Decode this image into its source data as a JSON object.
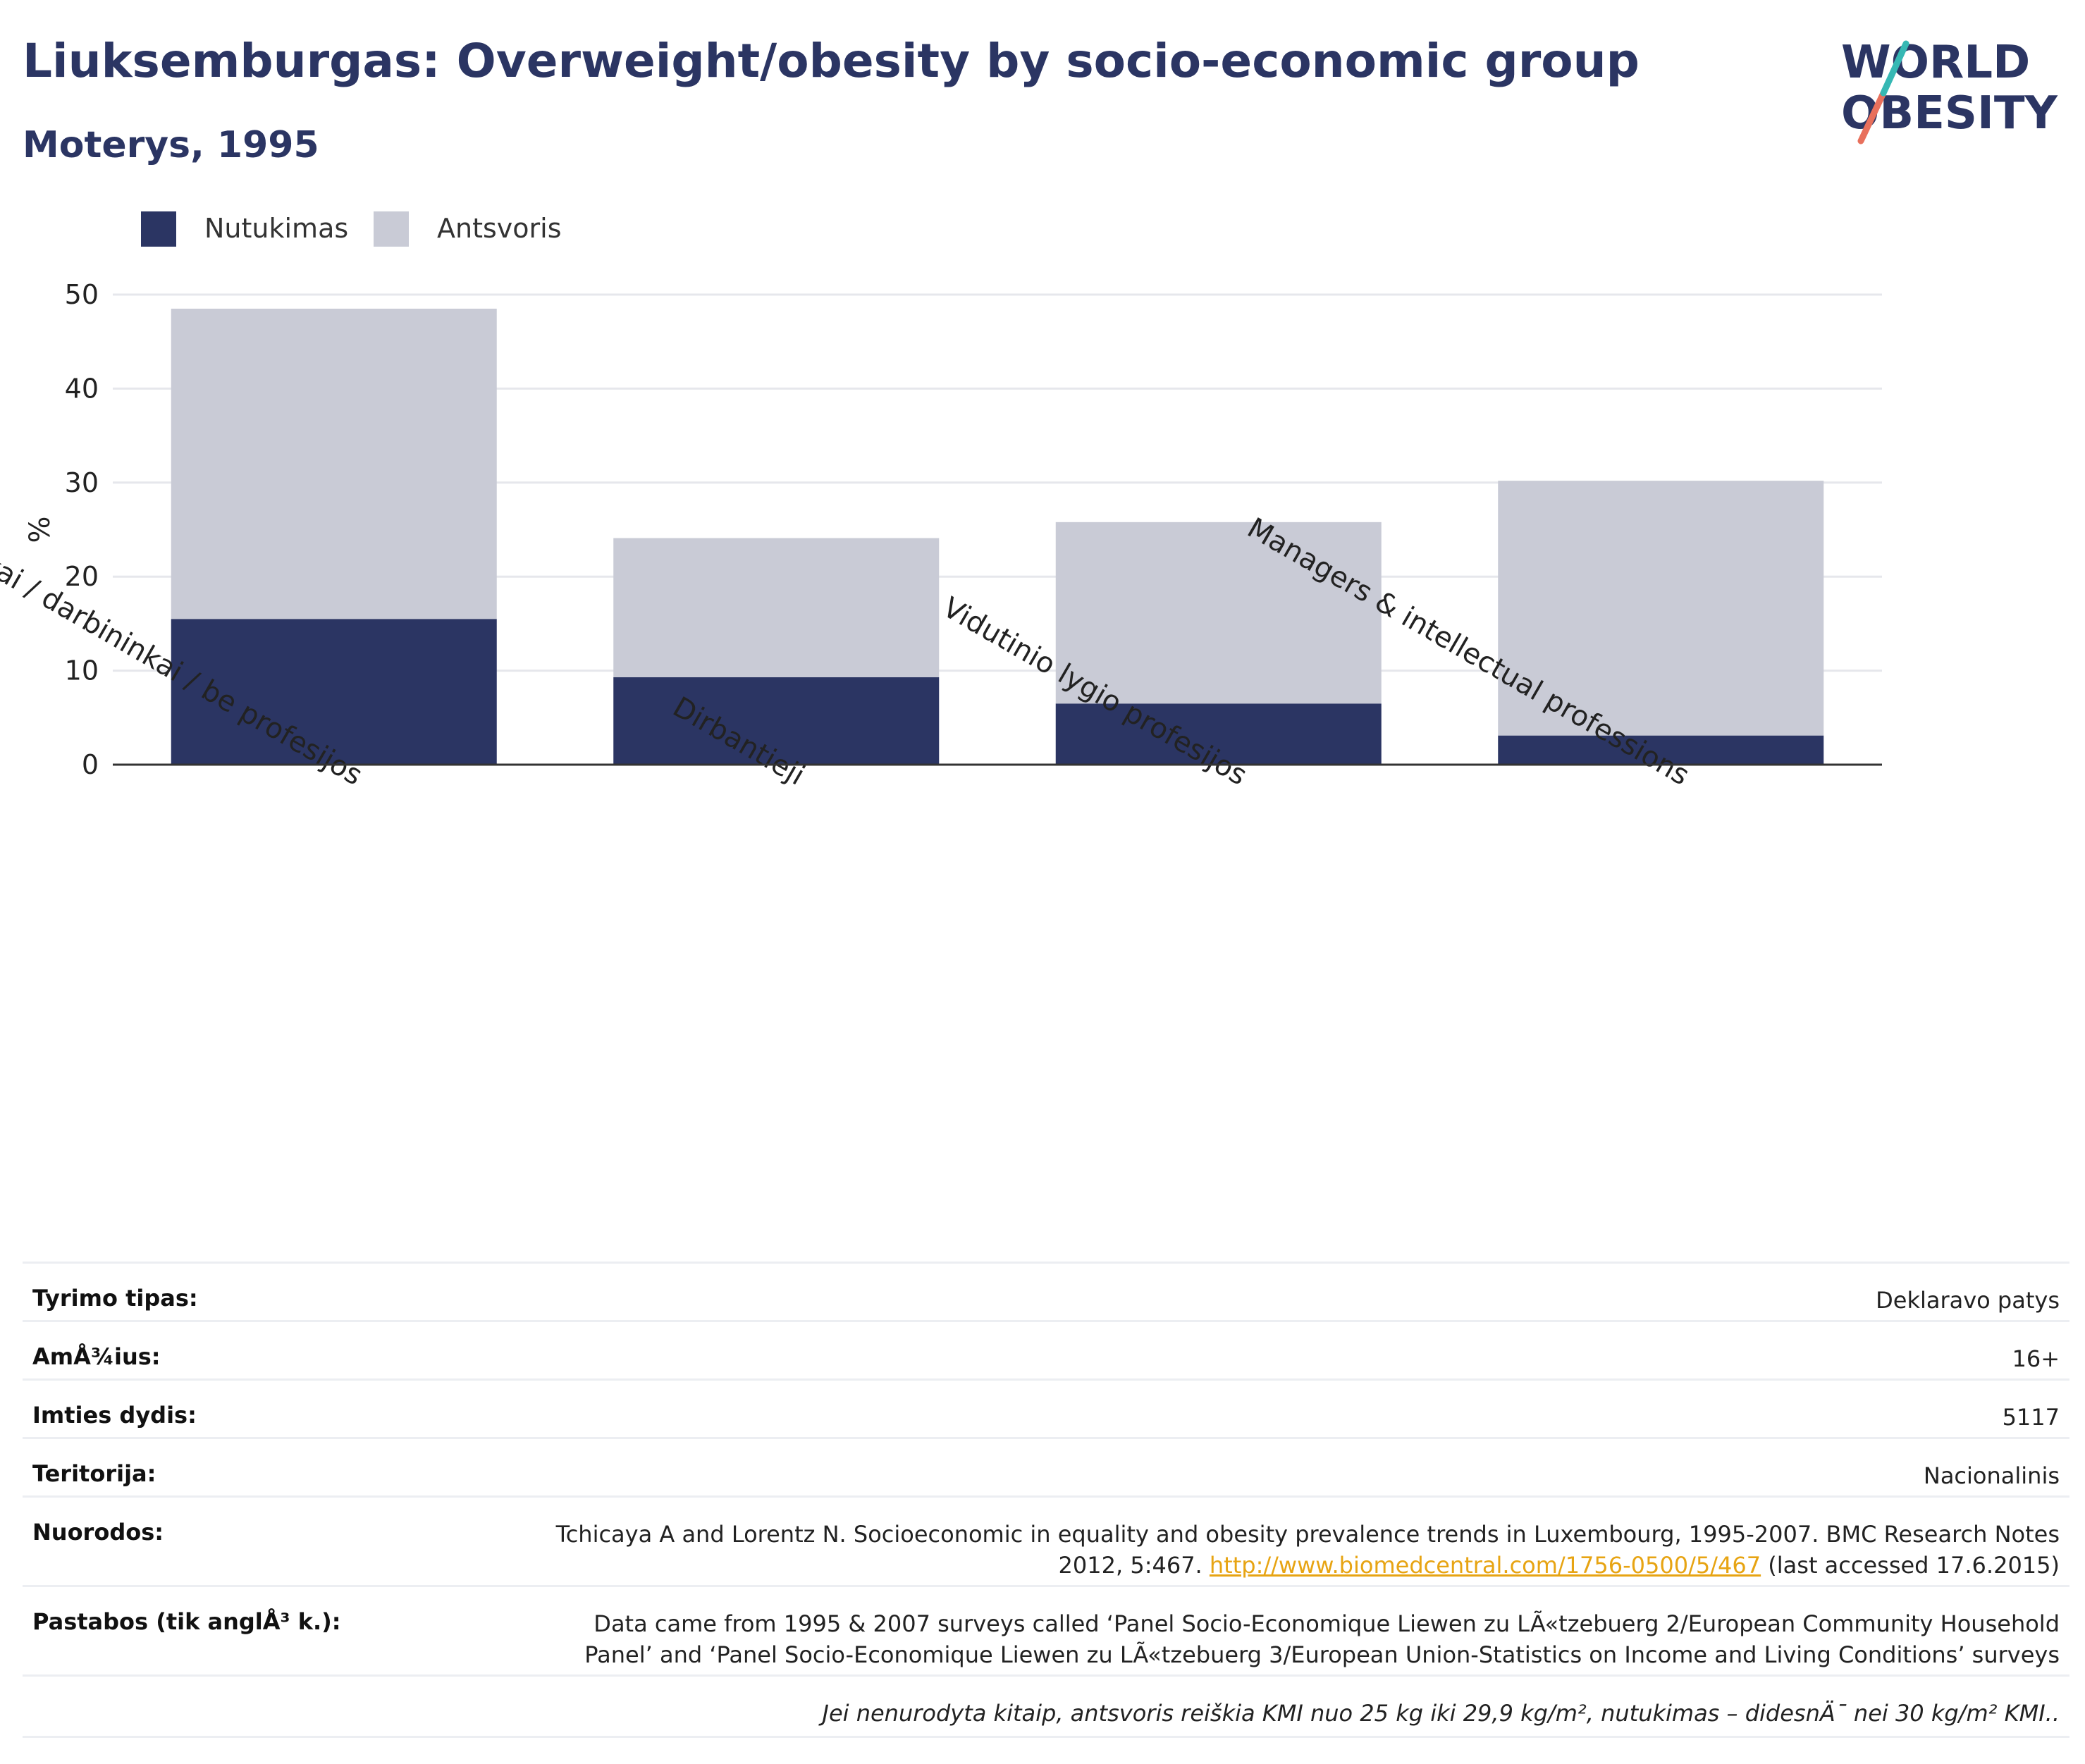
{
  "header": {
    "title": "Liuksemburgas: Overweight/obesity by socio-economic group",
    "subtitle": "Moterys, 1995"
  },
  "logo": {
    "line1": "WORLD",
    "line2": "OBESITY"
  },
  "colors": {
    "obesity": "#2b3563",
    "overweight": "#c9cbd6",
    "title": "#2b3563",
    "link": "#e7a413"
  },
  "chart_data": {
    "type": "bar",
    "stacked": true,
    "categories": [
      "Žemės ūkio darbininkai / amatininkai / darbininkai / be profesijos",
      "Dirbantieji",
      "Vidutinio lygio profesijos",
      "Managers & intellectual professions"
    ],
    "series": [
      {
        "name": "Nutukimas",
        "values": [
          15.5,
          9.3,
          6.5,
          3.1
        ]
      },
      {
        "name": "Antsvoris",
        "values": [
          33.0,
          14.8,
          19.3,
          27.1
        ]
      }
    ],
    "ylabel": "%",
    "ylim": [
      0,
      50
    ],
    "yticks": [
      0,
      10,
      20,
      30,
      40,
      50
    ],
    "grid": true,
    "legend_position": "top-left"
  },
  "meta": [
    {
      "label": "Tyrimo tipas:",
      "value": "Deklaravo patys"
    },
    {
      "label": "AmÅ¾ius:",
      "value": "16+"
    },
    {
      "label": "Imties dydis:",
      "value": "5117"
    },
    {
      "label": "Teritorija:",
      "value": "Nacionalinis"
    }
  ],
  "references": {
    "label": "Nuorodos:",
    "line1": "Tchicaya A and Lorentz N. Socioeconomic in equality and obesity prevalence trends in Luxembourg, 1995-2007. BMC Research Notes",
    "line2_prefix": "2012, 5:467.",
    "link": "http://www.biomedcentral.com/1756-0500/5/467",
    "line2_suffix": "(last accessed 17.6.2015)"
  },
  "notes": {
    "label": "Pastabos (tik anglÅ³ k.):",
    "line1": "Data came from 1995 & 2007 surveys called ‘Panel Socio-Economique Liewen zu LÃ«tzebuerg 2/European Community Household",
    "line2": "Panel’ and ‘Panel Socio-Economique Liewen zu LÃ«tzebuerg 3/European Union-Statistics on Income and Living Conditions’ surveys"
  },
  "footnote": "Jei nenurodyta kitaip, antsvoris reiškia KMI nuo 25 kg iki 29,9 kg/m², nutukimas – didesnÄ¯ nei 30 kg/m² KMI.."
}
